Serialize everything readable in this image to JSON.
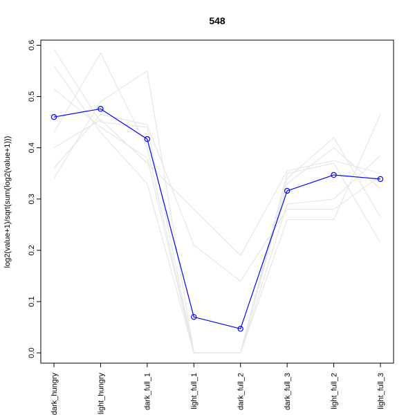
{
  "chart_data": {
    "type": "line",
    "title": "548",
    "xlabel": "",
    "ylabel": "log2(value+1)/sqrt(sum(log2(value+1)))",
    "categories": [
      "dark_hungry",
      "light_hungry",
      "dark_full_1",
      "light_full_1",
      "dark_full_2",
      "dark_full_3",
      "light_full_2",
      "light_full_3"
    ],
    "ylim": [
      -0.02,
      0.61
    ],
    "yticks": [
      0.0,
      0.1,
      0.2,
      0.3,
      0.4,
      0.5,
      0.6
    ],
    "ytick_labels": [
      "0.0",
      "0.1",
      "0.2",
      "0.3",
      "0.4",
      "0.5",
      "0.6"
    ],
    "grid": false,
    "highlight_color": "#0000ff",
    "background_color": "#e6e6e6",
    "series": [
      {
        "values": [
          0.46,
          0.476,
          0.417,
          0.07,
          0.047,
          0.316,
          0.347,
          0.339
        ],
        "highlight": true
      },
      {
        "values": [
          0.592,
          0.45,
          0.44,
          0.0,
          0.0,
          0.34,
          0.42,
          0.265
        ]
      },
      {
        "values": [
          0.56,
          0.43,
          0.33,
          0.0,
          0.0,
          0.33,
          0.4,
          0.32
        ]
      },
      {
        "values": [
          0.515,
          0.44,
          0.38,
          0.0,
          0.0,
          0.29,
          0.3,
          0.385
        ]
      },
      {
        "values": [
          0.43,
          0.585,
          0.4,
          0.0,
          0.0,
          0.35,
          0.37,
          0.215
        ]
      },
      {
        "values": [
          0.34,
          0.49,
          0.55,
          0.0,
          0.0,
          0.26,
          0.26,
          0.465
        ]
      },
      {
        "values": [
          0.36,
          0.465,
          0.445,
          0.21,
          0.14,
          0.28,
          0.28,
          0.345
        ]
      },
      {
        "values": [
          0.4,
          0.455,
          0.37,
          0.28,
          0.19,
          0.355,
          0.375,
          0.35
        ]
      }
    ]
  }
}
